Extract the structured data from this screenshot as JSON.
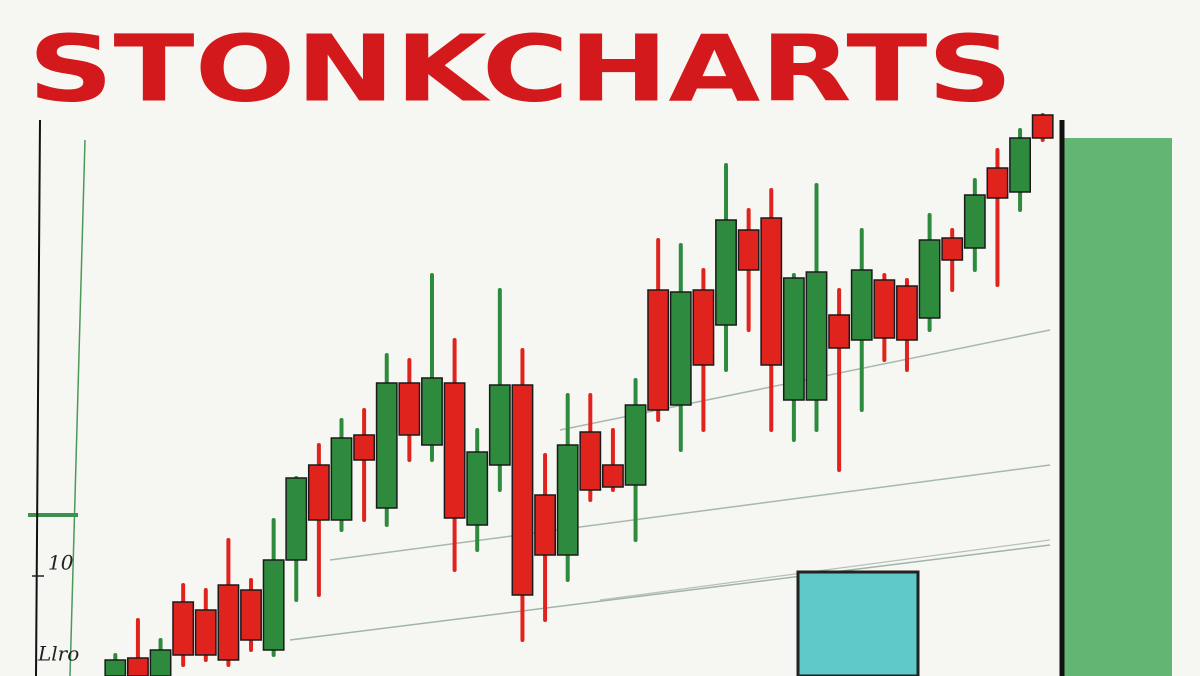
{
  "chart_data": {
    "type": "candlestick",
    "title": "STONKCHARTS",
    "annotations": [
      "Llro"
    ],
    "up_color": "#2e8a3c",
    "down_color": "#e0231c",
    "ylim": [
      0,
      57
    ],
    "yticks": [
      10
    ],
    "open": [
      0,
      1.8,
      0,
      7.4,
      6.6,
      9.1,
      8.6,
      2.6,
      11.6,
      21.1,
      15.6,
      24.1,
      16.8,
      29.3,
      23.1,
      29.3,
      15.1,
      21.1,
      29.1,
      18.1,
      12.1,
      24.4,
      21.1,
      19.1,
      38.6,
      27.1,
      38.6,
      35.1,
      44.6,
      45.8,
      27.6,
      27.6,
      36.1,
      33.6,
      39.6,
      39.0,
      35.8,
      43.8,
      42.8,
      50.8,
      48.4,
      56.1
    ],
    "high": [
      2.1,
      5.6,
      3.6,
      9.1,
      8.6,
      13.6,
      9.6,
      15.6,
      19.8,
      23.1,
      25.6,
      26.6,
      32.1,
      31.6,
      40.1,
      33.6,
      24.6,
      38.6,
      32.6,
      22.1,
      28.1,
      28.1,
      24.6,
      29.6,
      43.6,
      43.1,
      40.6,
      51.1,
      46.6,
      48.6,
      40.1,
      49.1,
      38.6,
      44.6,
      40.1,
      39.6,
      46.1,
      44.6,
      49.6,
      52.6,
      54.6,
      56.1
    ],
    "low": [
      0,
      0,
      0,
      1.1,
      1.6,
      1.1,
      2.6,
      2.1,
      7.6,
      8.1,
      14.6,
      15.6,
      15.1,
      21.6,
      21.6,
      10.6,
      12.6,
      18.6,
      3.6,
      5.6,
      9.6,
      17.6,
      18.6,
      13.6,
      25.6,
      22.6,
      24.6,
      30.6,
      34.6,
      24.6,
      23.6,
      24.6,
      20.6,
      26.6,
      31.6,
      30.6,
      34.6,
      38.6,
      40.6,
      39.1,
      46.6,
      53.6
    ],
    "close": [
      1.6,
      0,
      2.6,
      2.1,
      2.1,
      1.6,
      3.6,
      11.6,
      19.8,
      15.6,
      23.8,
      21.6,
      29.3,
      24.1,
      29.8,
      15.8,
      22.4,
      29.1,
      8.1,
      12.1,
      23.1,
      18.6,
      18.9,
      27.1,
      26.6,
      38.4,
      31.1,
      45.6,
      40.6,
      31.1,
      39.8,
      40.4,
      32.8,
      40.6,
      33.8,
      33.6,
      43.6,
      41.6,
      48.1,
      47.8,
      53.8,
      53.8
    ]
  }
}
